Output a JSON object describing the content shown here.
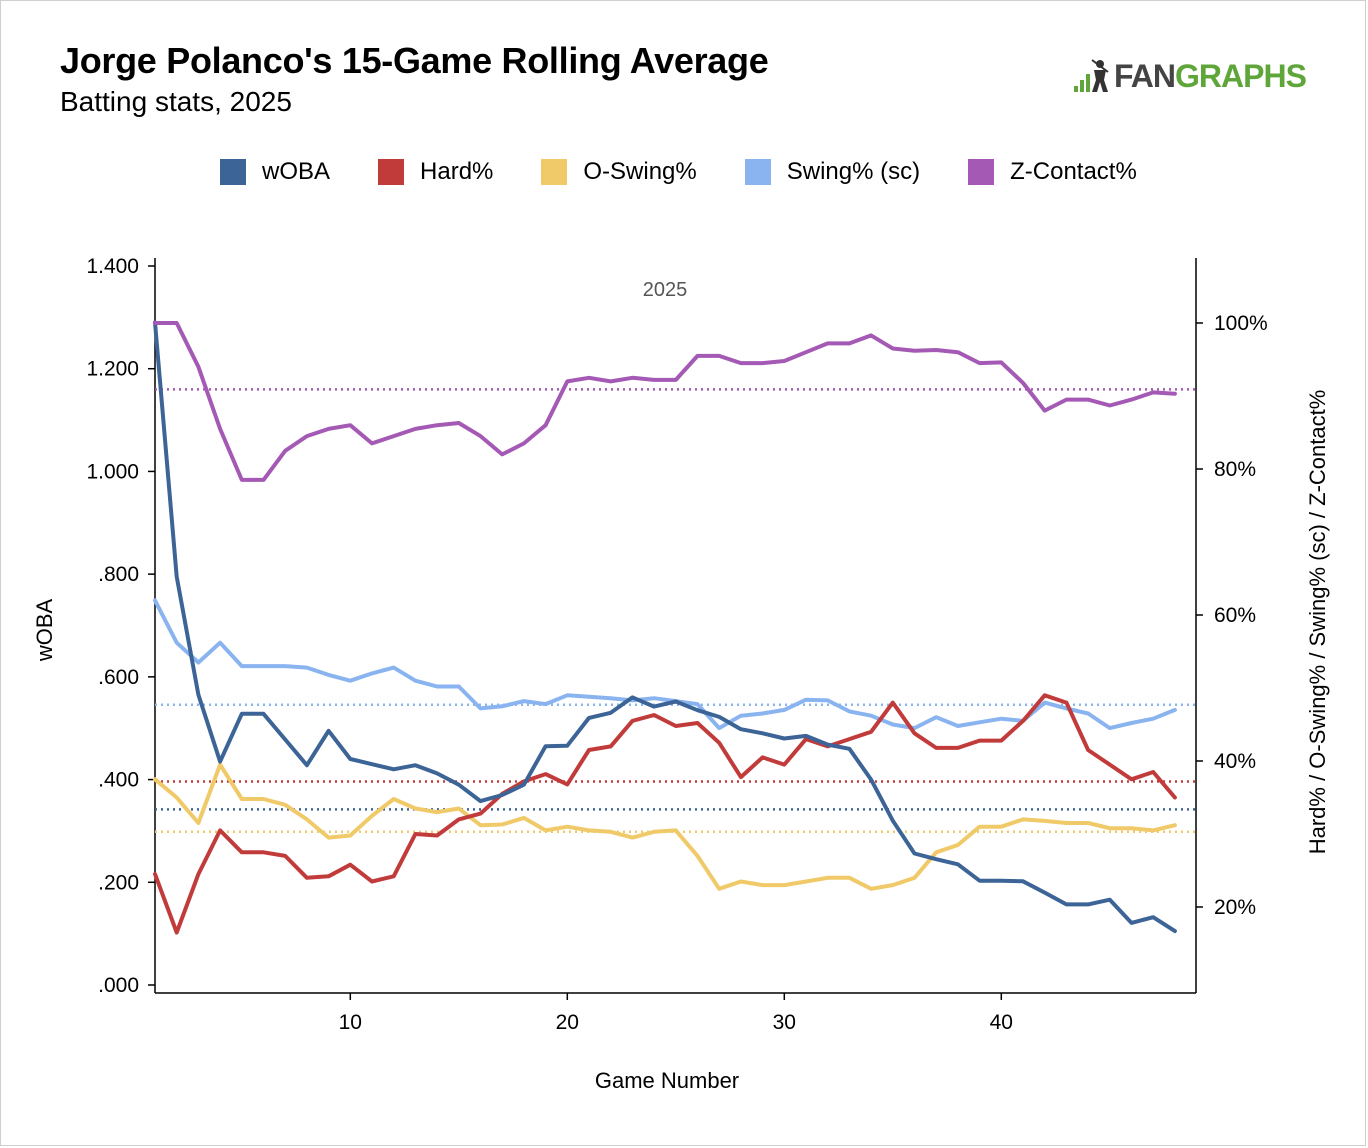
{
  "header": {
    "title": "Jorge Polanco's 15-Game Rolling Average",
    "subtitle": "Batting stats, 2025"
  },
  "logo": {
    "icon": "fangraphs-batter-icon",
    "text_a": "FAN",
    "text_b": "GRAPHS"
  },
  "legend": [
    {
      "label": "wOBA",
      "color": "#3c6496"
    },
    {
      "label": "Hard%",
      "color": "#c23b3b"
    },
    {
      "label": "O-Swing%",
      "color": "#f0c969"
    },
    {
      "label": "Swing% (sc)",
      "color": "#8ab4f0"
    },
    {
      "label": "Z-Contact%",
      "color": "#a45ab4"
    }
  ],
  "chart_data": {
    "type": "line",
    "annotation": "2025",
    "xlabel": "Game Number",
    "ylabel_left": "wOBA",
    "ylabel_right": "Hard% / O-Swing% / Swing% (sc) / Z-Contact%",
    "xlim": [
      1,
      49
    ],
    "x_ticks": [
      10,
      20,
      30,
      40
    ],
    "ylim_left": [
      0,
      1.4
    ],
    "y_ticks_left": [
      {
        "value": 0,
        "label": ".000"
      },
      {
        "value": 0.2,
        "label": ".200"
      },
      {
        "value": 0.4,
        "label": ".400"
      },
      {
        "value": 0.6,
        "label": ".600"
      },
      {
        "value": 0.8,
        "label": ".800"
      },
      {
        "value": 1.0,
        "label": "1.000"
      },
      {
        "value": 1.2,
        "label": "1.200"
      },
      {
        "value": 1.4,
        "label": "1.400"
      }
    ],
    "ylim_right": [
      10,
      108
    ],
    "y_ticks_right": [
      {
        "value": 20,
        "label": "20%"
      },
      {
        "value": 40,
        "label": "40%"
      },
      {
        "value": 60,
        "label": "60%"
      },
      {
        "value": 80,
        "label": "80%"
      },
      {
        "value": 100,
        "label": "100%"
      }
    ],
    "x": [
      1,
      2,
      3,
      4,
      5,
      6,
      7,
      8,
      9,
      10,
      11,
      12,
      13,
      14,
      15,
      16,
      17,
      18,
      19,
      20,
      21,
      22,
      23,
      24,
      25,
      26,
      27,
      28,
      29,
      30,
      31,
      32,
      33,
      34,
      35,
      36,
      37,
      38,
      39,
      40,
      41,
      42,
      43,
      44,
      45,
      46,
      47,
      48
    ],
    "series": [
      {
        "name": "wOBA",
        "axis": "left",
        "color": "#3c6496",
        "values": [
          1.29,
          0.795,
          0.565,
          0.435,
          0.528,
          0.528,
          0.478,
          0.428,
          0.495,
          0.44,
          0.43,
          0.42,
          0.428,
          0.412,
          0.39,
          0.358,
          0.37,
          0.39,
          0.465,
          0.466,
          0.52,
          0.53,
          0.56,
          0.542,
          0.552,
          0.535,
          0.522,
          0.498,
          0.49,
          0.48,
          0.485,
          0.468,
          0.46,
          0.4,
          0.32,
          0.256,
          0.245,
          0.235,
          0.203,
          0.203,
          0.202,
          0.18,
          0.157,
          0.157,
          0.166,
          0.121,
          0.132,
          0.105
        ],
        "average": 0.342
      },
      {
        "name": "Hard%",
        "axis": "right",
        "color": "#c23b3b",
        "values": [
          24.5,
          16.5,
          24.5,
          30.5,
          27.5,
          27.5,
          27.0,
          24.0,
          24.2,
          25.8,
          23.5,
          24.2,
          30.0,
          29.8,
          32.0,
          32.8,
          35.5,
          37.2,
          38.2,
          36.8,
          41.5,
          42.0,
          45.5,
          46.3,
          44.8,
          45.2,
          42.5,
          37.8,
          40.5,
          39.5,
          43.0,
          42.0,
          43.0,
          44.0,
          48.0,
          43.8,
          41.8,
          41.8,
          42.8,
          42.8,
          45.5,
          49.0,
          48.0,
          41.5,
          39.5,
          37.5,
          38.5,
          35.0
        ],
        "average": 37.2
      },
      {
        "name": "O-Swing%",
        "axis": "right",
        "color": "#f0c969",
        "values": [
          37.5,
          35.0,
          31.5,
          39.5,
          34.8,
          34.8,
          34.0,
          32.0,
          29.5,
          29.8,
          32.5,
          34.8,
          33.5,
          33.0,
          33.5,
          31.2,
          31.3,
          32.2,
          30.5,
          31.0,
          30.5,
          30.3,
          29.5,
          30.3,
          30.5,
          27.0,
          22.5,
          23.5,
          23.0,
          23.0,
          23.5,
          24.0,
          24.0,
          22.5,
          23.0,
          24.0,
          27.5,
          28.5,
          31.0,
          31.0,
          32.0,
          31.8,
          31.5,
          31.5,
          30.8,
          30.8,
          30.5,
          31.2
        ],
        "average": 30.3
      },
      {
        "name": "Swing% (sc)",
        "axis": "right",
        "color": "#8ab4f0",
        "values": [
          62.0,
          56.2,
          53.5,
          56.2,
          53.0,
          53.0,
          53.0,
          52.8,
          51.8,
          51.0,
          52.0,
          52.8,
          51.0,
          50.2,
          50.2,
          47.2,
          47.5,
          48.2,
          47.8,
          49.0,
          48.8,
          48.6,
          48.3,
          48.6,
          48.2,
          47.8,
          44.5,
          46.2,
          46.5,
          47.0,
          48.4,
          48.3,
          46.8,
          46.2,
          45.0,
          44.5,
          46.0,
          44.8,
          45.3,
          45.8,
          45.5,
          48.0,
          47.2,
          46.5,
          44.5,
          45.2,
          45.8,
          47.0
        ],
        "average": 47.7
      },
      {
        "name": "Z-Contact%",
        "axis": "right",
        "color": "#a45ab4",
        "values": [
          100.0,
          100.0,
          94.0,
          85.5,
          78.5,
          78.5,
          82.5,
          84.5,
          85.5,
          86.0,
          83.5,
          84.5,
          85.5,
          86.0,
          86.3,
          84.5,
          82.0,
          83.5,
          86.0,
          92.0,
          92.5,
          92.0,
          92.5,
          92.2,
          92.2,
          95.5,
          95.5,
          94.5,
          94.5,
          94.8,
          96.0,
          97.2,
          97.2,
          98.3,
          96.5,
          96.2,
          96.3,
          96.0,
          94.5,
          94.6,
          91.8,
          88.0,
          89.5,
          89.5,
          88.7,
          89.5,
          90.5,
          90.3
        ],
        "average": 90.9
      }
    ]
  }
}
